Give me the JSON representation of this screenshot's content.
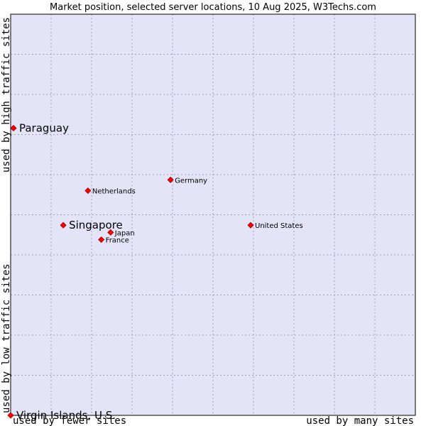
{
  "chart_data": {
    "type": "scatter",
    "title": "Market position, selected server locations, 10 Aug 2025, W3Techs.com",
    "xlabel_left": "used by fewer sites",
    "xlabel_right": "used by many sites",
    "ylabel_bottom": "used by low traffic sites",
    "ylabel_top": "used by high traffic sites",
    "xlim": [
      0,
      10
    ],
    "ylim": [
      0,
      10
    ],
    "grid": true,
    "colors": {
      "plot_background": "#e4e4f8",
      "grid": "#a0a0b8",
      "border": "#000000",
      "marker": "#ff0000",
      "marker_edge": "#a00000"
    },
    "points": [
      {
        "label": "Paraguay",
        "x": 0.07,
        "y": 7.16,
        "emphasis": true
      },
      {
        "label": "Germany",
        "x": 3.95,
        "y": 5.87,
        "emphasis": false
      },
      {
        "label": "Netherlands",
        "x": 1.91,
        "y": 5.6,
        "emphasis": false
      },
      {
        "label": "Singapore",
        "x": 1.3,
        "y": 4.74,
        "emphasis": true
      },
      {
        "label": "United States",
        "x": 5.93,
        "y": 4.74,
        "emphasis": false
      },
      {
        "label": "Japan",
        "x": 2.47,
        "y": 4.56,
        "emphasis": false
      },
      {
        "label": "France",
        "x": 2.24,
        "y": 4.38,
        "emphasis": false
      },
      {
        "label": "Virgin Islands, U.S.",
        "x": 0.0,
        "y": 0.0,
        "emphasis": true
      }
    ]
  }
}
